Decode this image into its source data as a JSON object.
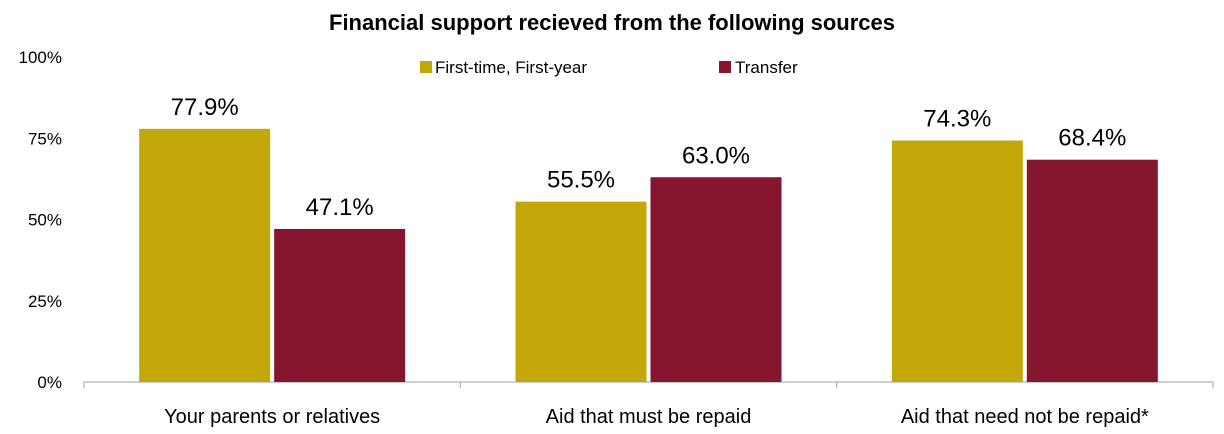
{
  "chart_data": {
    "type": "bar",
    "title": "Financial support recieved from the following sources",
    "categories": [
      "Your parents or relatives",
      "Aid that must be repaid",
      "Aid that need not be repaid*"
    ],
    "series": [
      {
        "name": "First-time, First-year",
        "values": [
          77.9,
          55.5,
          74.3
        ],
        "labels": [
          "77.9%",
          "55.5%",
          "74.3%"
        ],
        "color": "#C4A80A"
      },
      {
        "name": "Transfer",
        "values": [
          47.1,
          63.0,
          68.4
        ],
        "labels": [
          "47.1%",
          "63.0%",
          "68.4%"
        ],
        "color": "#861530"
      }
    ],
    "yticks": [
      "0%",
      "25%",
      "50%",
      "75%",
      "100%"
    ],
    "ylim": [
      0,
      100
    ],
    "xlabel": "",
    "ylabel": "",
    "grid": false,
    "legend_position": "top-center"
  }
}
